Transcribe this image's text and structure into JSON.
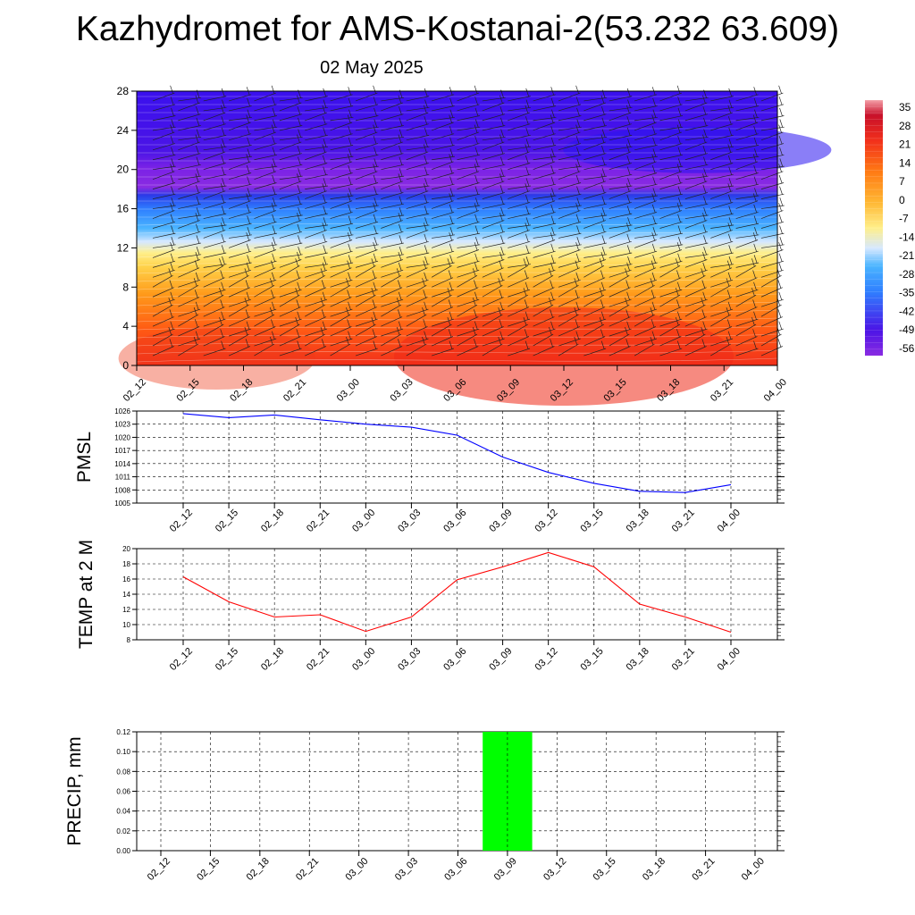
{
  "title": "Kazhydromet for AMS-Kostanai-2(53.232 63.609)",
  "subtitle": "02 May 2025",
  "chart_data": [
    {
      "type": "heatmap",
      "title": "",
      "time_labels": [
        "02_12",
        "02_15",
        "02_18",
        "02_21",
        "03_00",
        "03_03",
        "03_06",
        "03_09",
        "03_12",
        "03_15",
        "03_18",
        "03_21",
        "04_00"
      ],
      "y_ticks": [
        0,
        4,
        8,
        12,
        16,
        20,
        24,
        28
      ],
      "ylim": [
        0,
        28
      ],
      "colorbar_labels": [
        "35",
        "28",
        "21",
        "14",
        "7",
        "0",
        "-7",
        "-14",
        "-21",
        "-28",
        "-35",
        "-42",
        "-49",
        "-56"
      ],
      "colorbar_range": [
        -56,
        35
      ],
      "colors": {
        "cold": "#4b14e6",
        "violet": "#8a2be2",
        "blue": "#2f7fff",
        "cyan": "#4ab4ff",
        "pale": "#d6e8ff",
        "yellow": "#ffe566",
        "orange": "#ff9a1a",
        "red": "#f2301b"
      },
      "wind_barbs": true
    },
    {
      "type": "line",
      "ylabel": "PMSL",
      "x": [
        "02_12",
        "02_15",
        "02_18",
        "02_21",
        "03_00",
        "03_03",
        "03_06",
        "03_09",
        "03_12",
        "03_15",
        "03_18",
        "03_21",
        "04_00"
      ],
      "series": [
        {
          "values": [
            1025.4,
            1024.5,
            1025.1,
            1024.0,
            1023.0,
            1022.3,
            1020.5,
            1015.5,
            1012.0,
            1009.5,
            1007.7,
            1007.4,
            1009.2
          ],
          "color": "#0000ff"
        }
      ],
      "y_ticks": [
        1005,
        1008,
        1011,
        1014,
        1017,
        1020,
        1023,
        1026
      ],
      "ylim": [
        1005,
        1026
      ],
      "grid": true
    },
    {
      "type": "line",
      "ylabel": "TEMP at 2 M",
      "x": [
        "02_12",
        "02_15",
        "02_18",
        "02_21",
        "03_00",
        "03_03",
        "03_06",
        "03_09",
        "03_12",
        "03_15",
        "03_18",
        "03_21",
        "04_00"
      ],
      "series": [
        {
          "values": [
            16.3,
            13.0,
            11.0,
            11.3,
            9.1,
            11.0,
            15.9,
            17.6,
            19.5,
            17.6,
            12.7,
            11.0,
            9.0
          ],
          "color": "#ff0000"
        }
      ],
      "y_ticks": [
        8,
        10,
        12,
        14,
        16,
        18,
        20
      ],
      "ylim": [
        8,
        20
      ],
      "grid": true
    },
    {
      "type": "bar",
      "ylabel": "PRECIP, mm",
      "categories": [
        "02_12",
        "02_15",
        "02_18",
        "02_21",
        "03_00",
        "03_03",
        "03_06",
        "03_09",
        "03_12",
        "03_15",
        "03_18",
        "03_21",
        "04_00"
      ],
      "values": [
        0,
        0,
        0,
        0,
        0,
        0,
        0,
        0.12,
        0,
        0,
        0,
        0,
        0
      ],
      "y_ticks": [
        "0.00",
        "0.02",
        "0.04",
        "0.06",
        "0.08",
        "0.10",
        "0.12"
      ],
      "ylim": [
        0,
        0.12
      ],
      "bar_color": "#00ff00",
      "grid": true
    }
  ]
}
